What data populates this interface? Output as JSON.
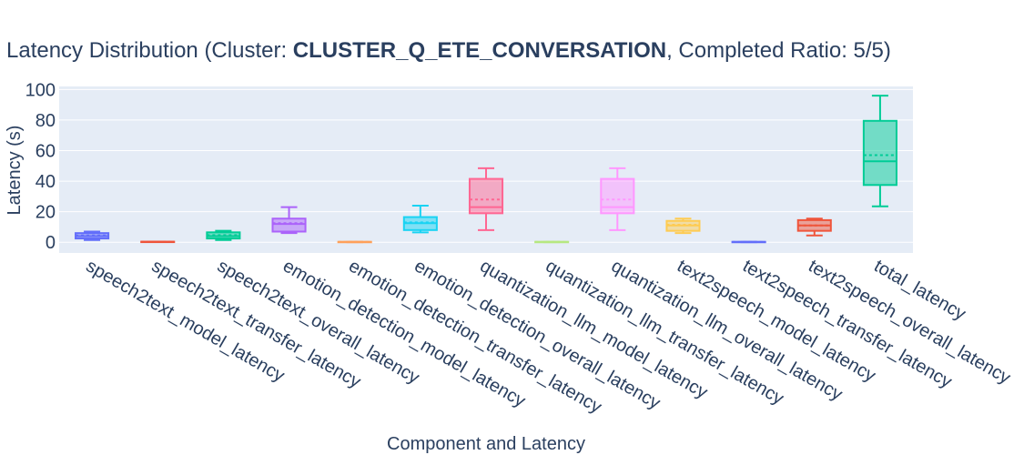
{
  "title": {
    "prefix": "Latency Distribution (Cluster: ",
    "cluster": "CLUSTER_Q_ETE_CONVERSATION",
    "suffix": ", Completed Ratio: 5/5)"
  },
  "chart_data": {
    "type": "box",
    "xlabel": "Component and Latency",
    "ylabel": "Latency (s)",
    "ylim": [
      -7,
      102
    ],
    "yticks": [
      0,
      20,
      40,
      60,
      80,
      100
    ],
    "grid": true,
    "legend": "none",
    "categories": [
      "speech2text_model_latency",
      "speech2text_transfer_latency",
      "speech2text_overall_latency",
      "emotion_detection_model_latency",
      "emotion_detection_transfer_latency",
      "emotion_detection_overall_latency",
      "quantization_llm_model_latency",
      "quantization_llm_transfer_latency",
      "quantization_llm_overall_latency",
      "text2speech_model_latency",
      "text2speech_transfer_latency",
      "text2speech_overall_latency",
      "total_latency"
    ],
    "boxes": [
      {
        "min": 1.5,
        "q1": 2.5,
        "median": 4,
        "q3": 6,
        "max": 7,
        "mean": 4.5,
        "color": "#636efa"
      },
      {
        "min": 0.2,
        "q1": 0.2,
        "median": 0.3,
        "q3": 0.4,
        "max": 0.4,
        "mean": 0.3,
        "color": "#ef553b"
      },
      {
        "min": 1.5,
        "q1": 2.5,
        "median": 4,
        "q3": 6.5,
        "max": 7.5,
        "mean": 4.7,
        "color": "#00cc96"
      },
      {
        "min": 6,
        "q1": 7,
        "median": 12,
        "q3": 15.5,
        "max": 23,
        "mean": 12.5,
        "color": "#ab63fa"
      },
      {
        "min": 0.1,
        "q1": 0.1,
        "median": 0.2,
        "q3": 0.3,
        "max": 0.3,
        "mean": 0.2,
        "color": "#ffa15a"
      },
      {
        "min": 6.5,
        "q1": 8,
        "median": 12.5,
        "q3": 16.5,
        "max": 24,
        "mean": 13,
        "color": "#19d3f3"
      },
      {
        "min": 8,
        "q1": 19,
        "median": 23,
        "q3": 41.5,
        "max": 48.5,
        "mean": 28,
        "color": "#ff6692"
      },
      {
        "min": 0.1,
        "q1": 0.1,
        "median": 0.2,
        "q3": 0.3,
        "max": 0.3,
        "mean": 0.2,
        "color": "#b6e880"
      },
      {
        "min": 8,
        "q1": 19,
        "median": 23,
        "q3": 41.5,
        "max": 48.5,
        "mean": 28,
        "color": "#ff97ff"
      },
      {
        "min": 6,
        "q1": 7.5,
        "median": 11,
        "q3": 14,
        "max": 15.5,
        "mean": 11.5,
        "color": "#fecb52"
      },
      {
        "min": 0.1,
        "q1": 0.1,
        "median": 0.2,
        "q3": 0.3,
        "max": 0.3,
        "mean": 0.2,
        "color": "#636efa"
      },
      {
        "min": 4.5,
        "q1": 7.5,
        "median": 11,
        "q3": 14.5,
        "max": 15.5,
        "mean": 11,
        "color": "#ef553b"
      },
      {
        "min": 23.5,
        "q1": 37.5,
        "median": 53,
        "q3": 79.5,
        "max": 96,
        "mean": 57,
        "color": "#00cc96"
      }
    ]
  }
}
